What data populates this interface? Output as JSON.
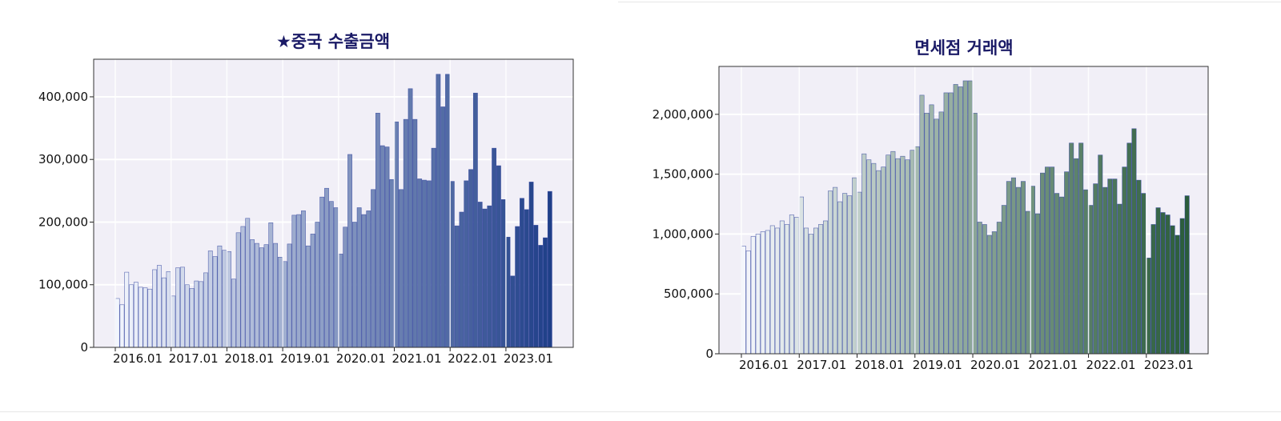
{
  "chart_data": [
    {
      "type": "bar",
      "title": "★중국 수출금액",
      "xlabel": "",
      "ylabel": "",
      "ylim": [
        0,
        460000
      ],
      "y_ticks": [
        0,
        100000,
        200000,
        300000,
        400000
      ],
      "y_tick_labels": [
        "0",
        "100,000",
        "200,000",
        "300,000",
        "400,000"
      ],
      "x_tick_labels": [
        "2016.01",
        "2017.01",
        "2018.01",
        "2019.01",
        "2020.01",
        "2021.01",
        "2022.01",
        "2023.01"
      ],
      "grid": true,
      "legend": "none",
      "start": "2016.01",
      "colors": {
        "first": "#f2f5fd",
        "last": "#1f3f88",
        "stroke": "#2b3d9b",
        "plot_bg": "#f1eff7"
      },
      "values": [
        78000,
        68000,
        120000,
        100000,
        104000,
        96000,
        95000,
        93000,
        124000,
        131000,
        111000,
        121000,
        82000,
        127000,
        128000,
        100000,
        94000,
        106000,
        105000,
        119000,
        154000,
        145000,
        162000,
        155000,
        153000,
        109000,
        183000,
        193000,
        206000,
        172000,
        166000,
        159000,
        164000,
        199000,
        166000,
        144000,
        137000,
        165000,
        211000,
        212000,
        218000,
        162000,
        181000,
        200000,
        240000,
        254000,
        233000,
        223000,
        149000,
        192000,
        308000,
        200000,
        223000,
        212000,
        218000,
        252000,
        374000,
        322000,
        320000,
        268000,
        360000,
        252000,
        364000,
        413000,
        364000,
        269000,
        267000,
        266000,
        318000,
        436000,
        384000,
        436000,
        265000,
        194000,
        216000,
        266000,
        284000,
        406000,
        232000,
        221000,
        226000,
        318000,
        290000,
        236000,
        176000,
        114000,
        193000,
        238000,
        220000,
        264000,
        195000,
        163000,
        175000,
        249000
      ]
    },
    {
      "type": "bar",
      "title": "면세점 거래액",
      "xlabel": "",
      "ylabel": "",
      "ylim": [
        0,
        2400000
      ],
      "y_ticks": [
        0,
        500000,
        1000000,
        1500000,
        2000000
      ],
      "y_tick_labels": [
        "0",
        "500,000",
        "1,000,000",
        "1,500,000",
        "2,000,000"
      ],
      "x_tick_labels": [
        "2016.01",
        "2017.01",
        "2018.01",
        "2019.01",
        "2020.01",
        "2021.01",
        "2022.01",
        "2023.01"
      ],
      "grid": true,
      "legend": "none",
      "start": "2016.01",
      "colors": {
        "first": "#f4f6fc",
        "last": "#2a5c3a",
        "stroke": "#2b3d9b",
        "plot_bg": "#f1eff7"
      },
      "values": [
        900000,
        860000,
        980000,
        1000000,
        1020000,
        1030000,
        1070000,
        1050000,
        1110000,
        1080000,
        1160000,
        1140000,
        1310000,
        1050000,
        1000000,
        1050000,
        1080000,
        1110000,
        1360000,
        1390000,
        1270000,
        1340000,
        1320000,
        1470000,
        1350000,
        1670000,
        1620000,
        1590000,
        1530000,
        1560000,
        1660000,
        1690000,
        1630000,
        1650000,
        1620000,
        1700000,
        1730000,
        2160000,
        2010000,
        2080000,
        1960000,
        2020000,
        2180000,
        2180000,
        2250000,
        2230000,
        2280000,
        2280000,
        2010000,
        1100000,
        1080000,
        990000,
        1020000,
        1100000,
        1240000,
        1440000,
        1470000,
        1390000,
        1440000,
        1190000,
        1400000,
        1170000,
        1510000,
        1560000,
        1560000,
        1340000,
        1310000,
        1520000,
        1760000,
        1630000,
        1760000,
        1370000,
        1240000,
        1420000,
        1660000,
        1390000,
        1460000,
        1460000,
        1250000,
        1560000,
        1760000,
        1880000,
        1450000,
        1340000,
        800000,
        1080000,
        1220000,
        1180000,
        1160000,
        1070000,
        990000,
        1130000,
        1320000
      ]
    }
  ]
}
